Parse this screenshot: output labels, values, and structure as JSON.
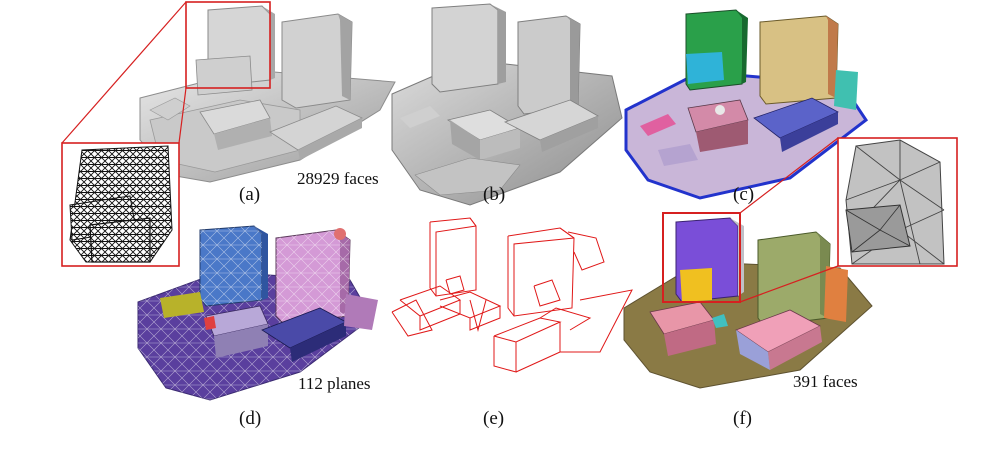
{
  "figure": {
    "panels": [
      {
        "id": "a",
        "caption": "(a)",
        "note": "28929 faces",
        "render": "smooth-gray-mesh",
        "inset": "wireframe-zoom"
      },
      {
        "id": "b",
        "caption": "(b)",
        "render": "smoothed-gray-mesh"
      },
      {
        "id": "c",
        "caption": "(c)",
        "render": "colored-segmentation"
      },
      {
        "id": "d",
        "caption": "(d)",
        "note": "112 planes",
        "render": "planar-regions-with-triangulation"
      },
      {
        "id": "e",
        "caption": "(e)",
        "render": "red-line-structure"
      },
      {
        "id": "f",
        "caption": "(f)",
        "note": "391 faces",
        "render": "simplified-polygonal-model",
        "inset": "triangulated-zoom"
      }
    ],
    "colors": {
      "highlight_frame": "#d62020",
      "wire": "#e01818",
      "mesh_gray": "#bdbdbd",
      "ground_purple": "#5a3f9e",
      "ground_olive": "#8a7a45"
    }
  }
}
